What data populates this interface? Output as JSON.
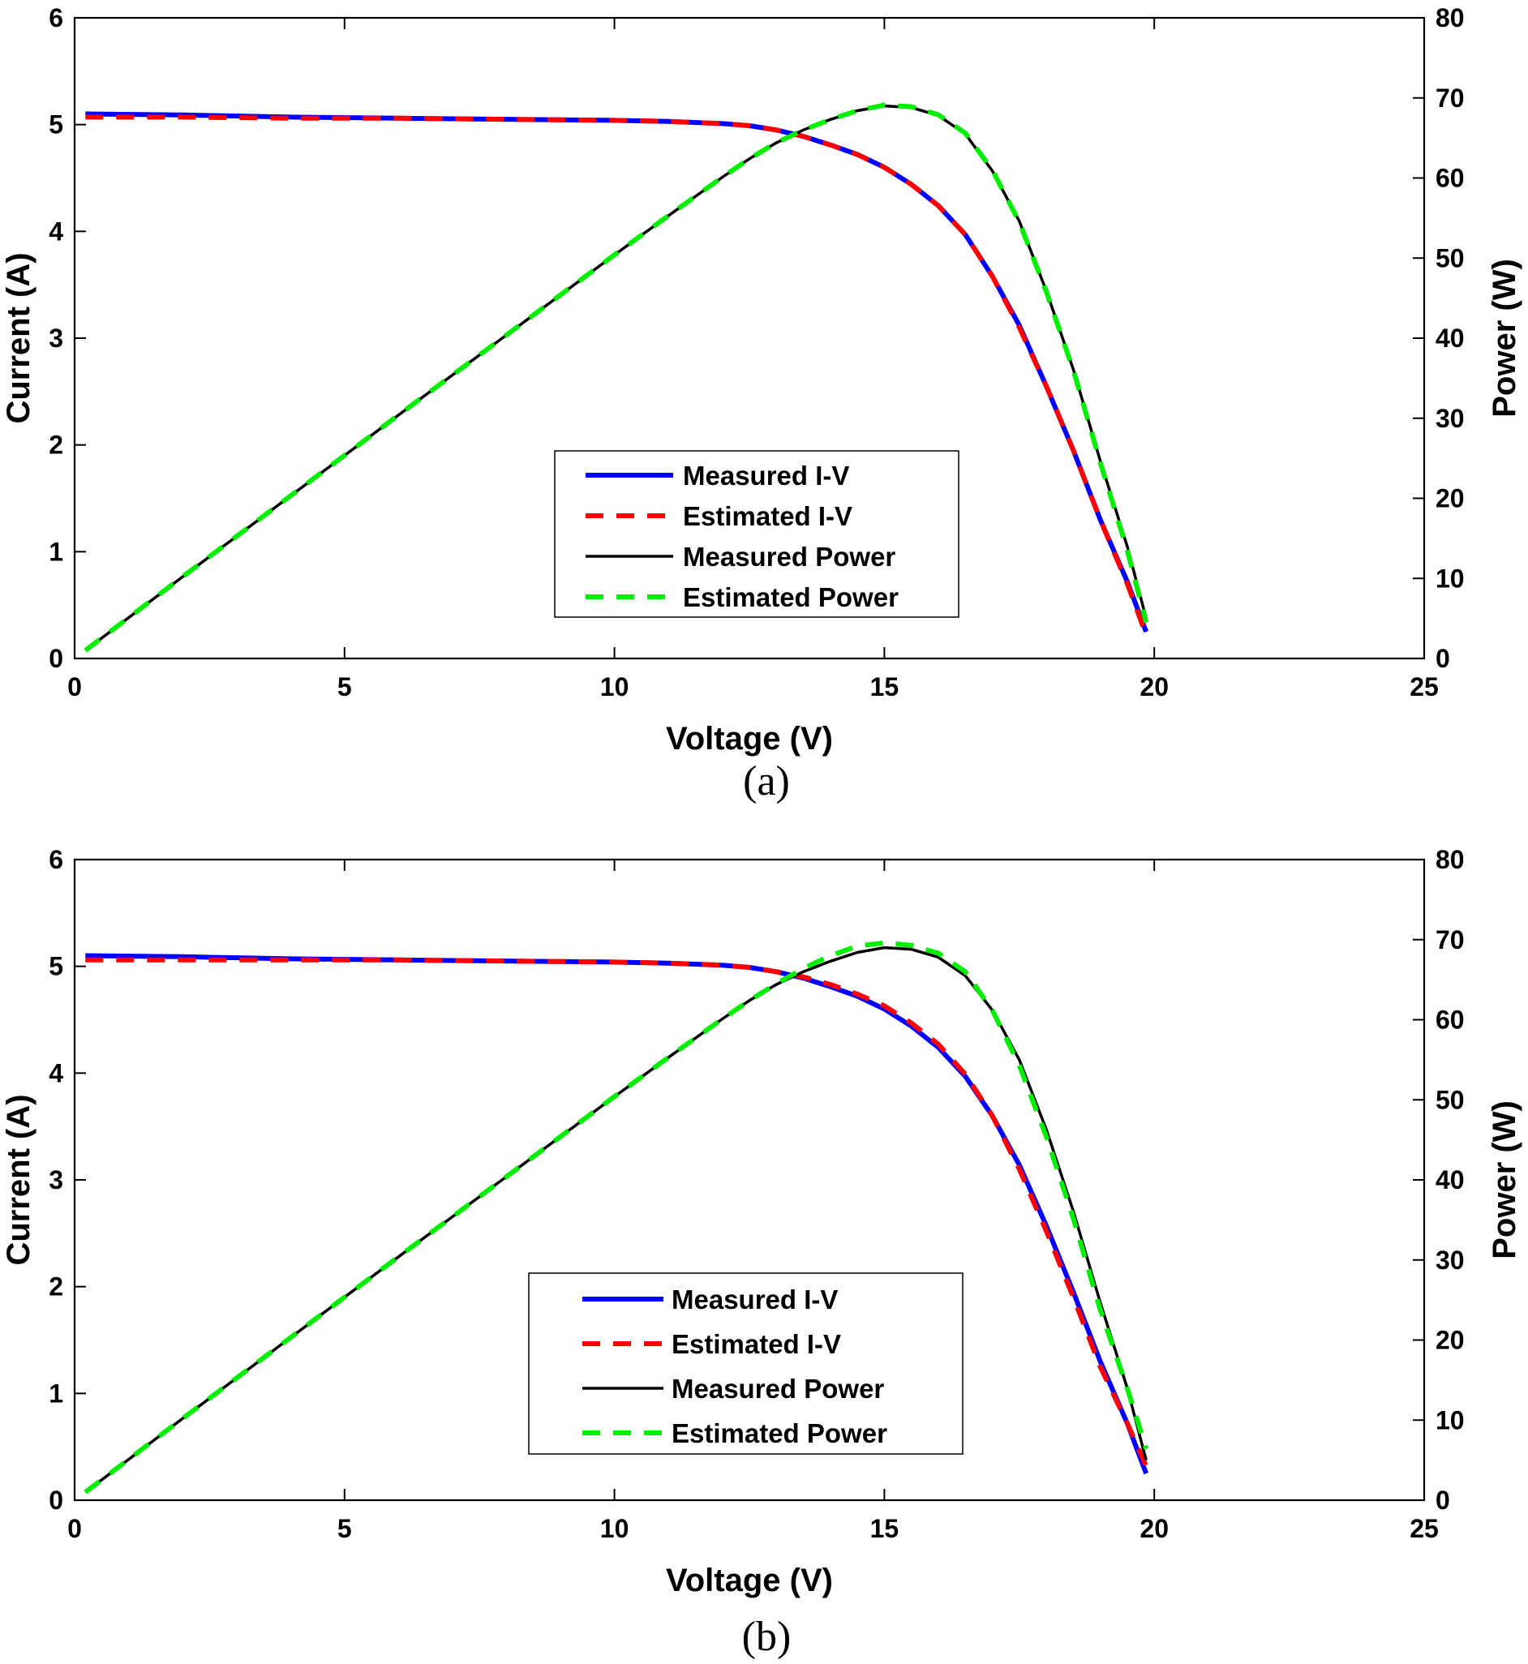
{
  "chart_data": [
    {
      "type": "line",
      "caption": "(a)",
      "xlabel": "Voltage (V)",
      "ylabel": "Current (A)",
      "y2label": "Power (W)",
      "xlim": [
        0,
        25
      ],
      "ylim": [
        0,
        6
      ],
      "y2lim": [
        0,
        80
      ],
      "xticks": [
        "0",
        "5",
        "10",
        "15",
        "20",
        "25"
      ],
      "yticks": [
        "0",
        "1",
        "2",
        "3",
        "4",
        "5",
        "6"
      ],
      "y2ticks": [
        "0",
        "10",
        "20",
        "30",
        "40",
        "50",
        "60",
        "70",
        "80"
      ],
      "legend_position": "center",
      "colors": {
        "measured_iv": "#0000ff",
        "estimated_iv": "#ff0000",
        "measured_power": "#000000",
        "estimated_power": "#00ee00"
      },
      "series": [
        {
          "name": "Measured I-V",
          "axis": "left",
          "style": "solid",
          "x": [
            0.2,
            2,
            4,
            6,
            8,
            10,
            11,
            12,
            12.5,
            13,
            13.5,
            14,
            14.5,
            15,
            15.5,
            16,
            16.5,
            17,
            17.5,
            18,
            18.5,
            19,
            19.5,
            19.85
          ],
          "y": [
            5.1,
            5.09,
            5.07,
            5.06,
            5.05,
            5.04,
            5.03,
            5.01,
            4.99,
            4.95,
            4.89,
            4.81,
            4.72,
            4.6,
            4.44,
            4.24,
            3.97,
            3.58,
            3.12,
            2.55,
            1.95,
            1.3,
            0.72,
            0.25
          ]
        },
        {
          "name": "Estimated I-V",
          "axis": "left",
          "style": "dashed",
          "x": [
            0.2,
            2,
            4,
            6,
            8,
            10,
            11,
            12,
            12.5,
            13,
            13.5,
            14,
            14.5,
            15,
            15.5,
            16,
            16.5,
            17,
            17.5,
            18,
            18.5,
            19,
            19.5,
            19.85
          ],
          "y": [
            5.07,
            5.07,
            5.06,
            5.06,
            5.05,
            5.04,
            5.03,
            5.01,
            4.99,
            4.95,
            4.89,
            4.81,
            4.72,
            4.6,
            4.44,
            4.24,
            3.97,
            3.58,
            3.1,
            2.55,
            1.95,
            1.3,
            0.7,
            0.22
          ]
        },
        {
          "name": "Measured Power",
          "axis": "right",
          "style": "solid",
          "x": [
            0.2,
            2,
            4,
            6,
            8,
            10,
            11,
            12,
            12.5,
            13,
            13.5,
            14,
            14.5,
            15,
            15.5,
            16,
            16.5,
            17,
            17.5,
            18,
            18.5,
            19,
            19.5,
            19.85
          ],
          "y": [
            1.0,
            10.2,
            20.3,
            30.4,
            40.4,
            50.4,
            55.3,
            60.1,
            62.4,
            64.4,
            66.0,
            67.3,
            68.4,
            69.0,
            68.8,
            67.8,
            65.5,
            60.9,
            54.6,
            45.9,
            36.1,
            24.7,
            14.0,
            5.0
          ]
        },
        {
          "name": "Estimated Power",
          "axis": "right",
          "style": "dashed",
          "x": [
            0.2,
            2,
            4,
            6,
            8,
            10,
            11,
            12,
            12.5,
            13,
            13.5,
            14,
            14.5,
            15,
            15.5,
            16,
            16.5,
            17,
            17.5,
            18,
            18.5,
            19,
            19.5,
            19.85
          ],
          "y": [
            1.0,
            10.2,
            20.3,
            30.4,
            40.4,
            50.4,
            55.3,
            60.1,
            62.4,
            64.4,
            66.0,
            67.3,
            68.4,
            69.1,
            68.9,
            67.9,
            65.6,
            61.0,
            54.5,
            45.8,
            36.0,
            24.5,
            13.5,
            4.5
          ]
        }
      ]
    },
    {
      "type": "line",
      "caption": "(b)",
      "xlabel": "Voltage (V)",
      "ylabel": "Current (A)",
      "y2label": "Power (W)",
      "xlim": [
        0,
        25
      ],
      "ylim": [
        0,
        6
      ],
      "y2lim": [
        0,
        80
      ],
      "xticks": [
        "0",
        "5",
        "10",
        "15",
        "20",
        "25"
      ],
      "yticks": [
        "0",
        "1",
        "2",
        "3",
        "4",
        "5",
        "6"
      ],
      "y2ticks": [
        "0",
        "10",
        "20",
        "30",
        "40",
        "50",
        "60",
        "70",
        "80"
      ],
      "legend_position": "center",
      "colors": {
        "measured_iv": "#0000ff",
        "estimated_iv": "#ff0000",
        "measured_power": "#000000",
        "estimated_power": "#00ee00"
      },
      "series": [
        {
          "name": "Measured I-V",
          "axis": "left",
          "style": "solid",
          "x": [
            0.2,
            2,
            4,
            6,
            8,
            10,
            11,
            12,
            12.5,
            13,
            13.5,
            14,
            14.5,
            15,
            15.5,
            16,
            16.5,
            17,
            17.5,
            18,
            18.5,
            19,
            19.5,
            19.85
          ],
          "y": [
            5.1,
            5.09,
            5.07,
            5.06,
            5.05,
            5.04,
            5.03,
            5.01,
            4.99,
            4.95,
            4.89,
            4.81,
            4.72,
            4.6,
            4.44,
            4.24,
            3.97,
            3.6,
            3.14,
            2.57,
            1.95,
            1.3,
            0.72,
            0.25
          ]
        },
        {
          "name": "Estimated I-V",
          "axis": "left",
          "style": "dashed",
          "x": [
            0.2,
            2,
            4,
            6,
            8,
            10,
            11,
            12,
            12.5,
            13,
            13.5,
            14,
            14.5,
            15,
            15.5,
            16,
            16.5,
            17,
            17.5,
            18,
            18.5,
            19,
            19.5,
            19.85
          ],
          "y": [
            5.06,
            5.06,
            5.06,
            5.06,
            5.05,
            5.04,
            5.03,
            5.01,
            4.99,
            4.95,
            4.9,
            4.83,
            4.74,
            4.63,
            4.47,
            4.27,
            3.99,
            3.6,
            3.1,
            2.52,
            1.9,
            1.25,
            0.72,
            0.32
          ]
        },
        {
          "name": "Measured Power",
          "axis": "right",
          "style": "solid",
          "x": [
            0.2,
            2,
            4,
            6,
            8,
            10,
            11,
            12,
            12.5,
            13,
            13.5,
            14,
            14.5,
            15,
            15.5,
            16,
            16.5,
            17,
            17.5,
            18,
            18.5,
            19,
            19.5,
            19.85
          ],
          "y": [
            1.0,
            10.2,
            20.3,
            30.4,
            40.4,
            50.4,
            55.3,
            60.1,
            62.4,
            64.4,
            66.0,
            67.3,
            68.4,
            69.0,
            68.8,
            67.8,
            65.5,
            61.2,
            55.0,
            46.3,
            36.1,
            24.7,
            14.0,
            5.0
          ]
        },
        {
          "name": "Estimated Power",
          "axis": "right",
          "style": "dashed",
          "x": [
            0.2,
            2,
            4,
            6,
            8,
            10,
            11,
            12,
            12.5,
            13,
            13.5,
            14,
            14.5,
            15,
            15.5,
            16,
            16.5,
            17,
            17.5,
            18,
            18.5,
            19,
            19.5,
            19.85
          ],
          "y": [
            1.0,
            10.2,
            20.3,
            30.4,
            40.4,
            50.4,
            55.3,
            60.1,
            62.4,
            64.5,
            66.4,
            68.0,
            69.2,
            69.6,
            69.3,
            68.3,
            66.0,
            61.2,
            54.3,
            45.4,
            35.2,
            23.8,
            14.0,
            6.4
          ]
        }
      ]
    }
  ]
}
